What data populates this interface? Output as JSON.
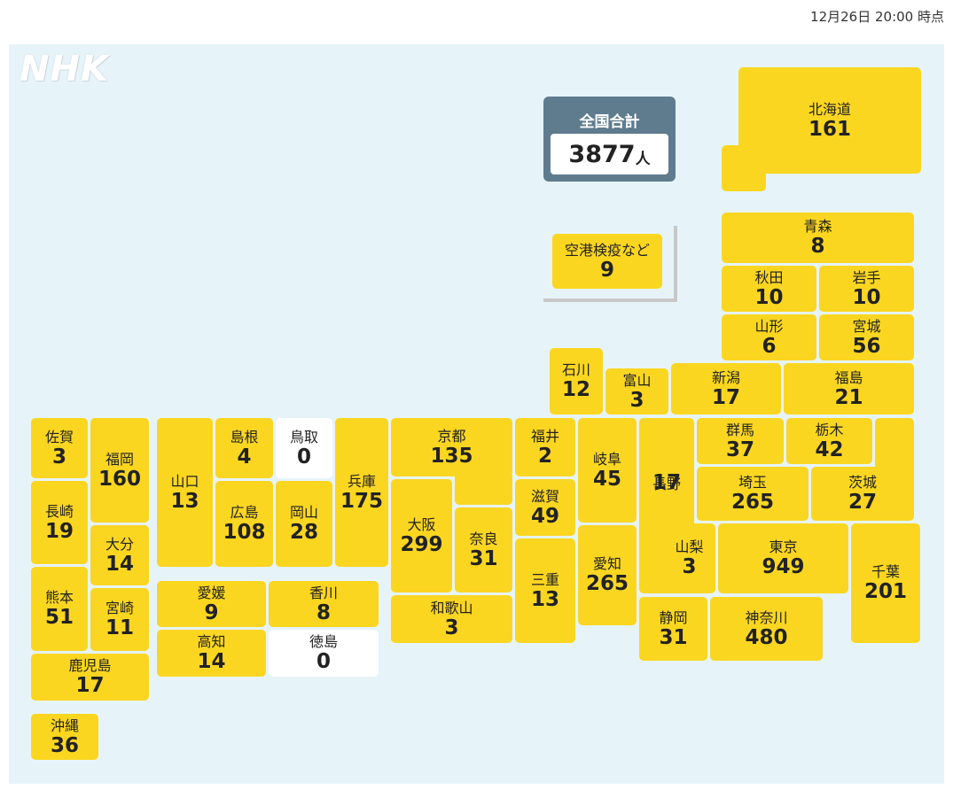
{
  "timestamp": "12月26日 20:00 時点",
  "logo": "NHK",
  "total": {
    "label": "全国合計",
    "value": "3877",
    "unit": "人"
  },
  "colors": {
    "filled": "#fbd621",
    "zero": "#ffffff",
    "background": "#e6f4fa",
    "total_box": "#5f7b8e"
  },
  "prefectures": {
    "hokkaido": {
      "name": "北海道",
      "count": "161"
    },
    "airport": {
      "name": "空港検疫など",
      "count": "9"
    },
    "aomori": {
      "name": "青森",
      "count": "8"
    },
    "akita": {
      "name": "秋田",
      "count": "10"
    },
    "iwate": {
      "name": "岩手",
      "count": "10"
    },
    "yamagata": {
      "name": "山形",
      "count": "6"
    },
    "miyagi": {
      "name": "宮城",
      "count": "56"
    },
    "ishikawa": {
      "name": "石川",
      "count": "12"
    },
    "toyama": {
      "name": "富山",
      "count": "3"
    },
    "niigata": {
      "name": "新潟",
      "count": "17"
    },
    "fukushima": {
      "name": "福島",
      "count": "21"
    },
    "saga": {
      "name": "佐賀",
      "count": "3"
    },
    "fukuoka": {
      "name": "福岡",
      "count": "160"
    },
    "yamaguchi": {
      "name": "山口",
      "count": "13"
    },
    "shimane": {
      "name": "島根",
      "count": "4"
    },
    "tottori": {
      "name": "鳥取",
      "count": "0"
    },
    "hyogo": {
      "name": "兵庫",
      "count": "175"
    },
    "kyoto": {
      "name": "京都",
      "count": "135"
    },
    "fukui": {
      "name": "福井",
      "count": "2"
    },
    "gifu": {
      "name": "岐阜",
      "count": "45"
    },
    "nagano": {
      "name": "長野",
      "count": "17"
    },
    "gunma": {
      "name": "群馬",
      "count": "37"
    },
    "tochigi": {
      "name": "栃木",
      "count": "42"
    },
    "nagasaki": {
      "name": "長崎",
      "count": "19"
    },
    "hiroshima": {
      "name": "広島",
      "count": "108"
    },
    "okayama": {
      "name": "岡山",
      "count": "28"
    },
    "shiga": {
      "name": "滋賀",
      "count": "49"
    },
    "saitama": {
      "name": "埼玉",
      "count": "265"
    },
    "ibaraki": {
      "name": "茨城",
      "count": "27"
    },
    "oita": {
      "name": "大分",
      "count": "14"
    },
    "osaka": {
      "name": "大阪",
      "count": "299"
    },
    "nara": {
      "name": "奈良",
      "count": "31"
    },
    "yamanashi": {
      "name": "山梨",
      "count": "3"
    },
    "tokyo": {
      "name": "東京",
      "count": "949"
    },
    "chiba": {
      "name": "千葉",
      "count": "201"
    },
    "aichi": {
      "name": "愛知",
      "count": "265"
    },
    "kumamoto": {
      "name": "熊本",
      "count": "51"
    },
    "miyazaki": {
      "name": "宮崎",
      "count": "11"
    },
    "ehime": {
      "name": "愛媛",
      "count": "9"
    },
    "kagawa": {
      "name": "香川",
      "count": "8"
    },
    "mie": {
      "name": "三重",
      "count": "13"
    },
    "wakayama": {
      "name": "和歌山",
      "count": "3"
    },
    "shizuoka": {
      "name": "静岡",
      "count": "31"
    },
    "kanagawa": {
      "name": "神奈川",
      "count": "480"
    },
    "kochi": {
      "name": "高知",
      "count": "14"
    },
    "tokushima": {
      "name": "徳島",
      "count": "0"
    },
    "kagoshima": {
      "name": "鹿児島",
      "count": "17"
    },
    "okinawa": {
      "name": "沖縄",
      "count": "36"
    }
  }
}
